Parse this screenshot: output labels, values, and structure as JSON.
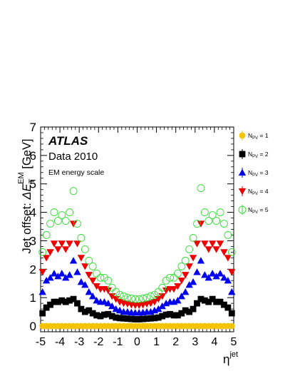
{
  "chart_data": {
    "type": "scatter",
    "title": "",
    "experiment_label": "ATLAS",
    "data_label": "Data 2010",
    "scale_label": "EM energy scale",
    "xlabel_main": "η",
    "xlabel_sup": "jet",
    "ylabel_prefix": "Jet offset:",
    "ylabel_delta": "ΔE",
    "ylabel_sub": "T",
    "ylabel_sup": "EM",
    "ylabel_unit": "[GeV]",
    "xlim": [
      -5,
      5
    ],
    "ylim": [
      -0.2,
      7
    ],
    "x_ticks": [
      -5,
      -4,
      -3,
      -2,
      -1,
      0,
      1,
      2,
      3,
      4,
      5
    ],
    "y_ticks": [
      0,
      1,
      2,
      3,
      4,
      5,
      6,
      7
    ],
    "grid": false,
    "legend_position": "right",
    "series": [
      {
        "name": "N_PV = 1",
        "legend_main": "N",
        "legend_sub": "PV",
        "legend_suffix": " = 1",
        "marker": "circle-filled",
        "color": "#f5c400",
        "x": [
          -4.9,
          -4.7,
          -4.5,
          -4.3,
          -4.1,
          -3.9,
          -3.7,
          -3.5,
          -3.3,
          -3.1,
          -2.9,
          -2.7,
          -2.5,
          -2.3,
          -2.1,
          -1.9,
          -1.7,
          -1.5,
          -1.3,
          -1.1,
          -0.9,
          -0.7,
          -0.5,
          -0.3,
          -0.1,
          0.1,
          0.3,
          0.5,
          0.7,
          0.9,
          1.1,
          1.3,
          1.5,
          1.7,
          1.9,
          2.1,
          2.3,
          2.5,
          2.7,
          2.9,
          3.1,
          3.3,
          3.5,
          3.7,
          3.9,
          4.1,
          4.3,
          4.5,
          4.7,
          4.9
        ],
        "y": [
          0.0,
          0.0,
          0.0,
          0.0,
          0.0,
          0.0,
          0.0,
          0.0,
          0.0,
          0.0,
          0.0,
          0.0,
          0.0,
          0.0,
          0.0,
          0.0,
          0.0,
          0.0,
          0.0,
          0.0,
          0.0,
          0.0,
          0.0,
          0.0,
          0.0,
          0.0,
          0.0,
          0.0,
          0.0,
          0.0,
          0.0,
          0.0,
          0.0,
          0.0,
          0.0,
          0.0,
          0.0,
          0.0,
          0.0,
          0.0,
          0.0,
          0.0,
          0.0,
          0.0,
          0.0,
          0.0,
          0.0,
          0.0,
          0.0,
          0.0
        ]
      },
      {
        "name": "N_PV = 2",
        "legend_main": "N",
        "legend_sub": "PV",
        "legend_suffix": " = 2",
        "marker": "square-filled",
        "color": "#000000",
        "x": [
          -4.9,
          -4.7,
          -4.5,
          -4.3,
          -4.1,
          -3.9,
          -3.7,
          -3.5,
          -3.3,
          -3.1,
          -2.9,
          -2.7,
          -2.5,
          -2.3,
          -2.1,
          -1.9,
          -1.7,
          -1.5,
          -1.3,
          -1.1,
          -0.9,
          -0.7,
          -0.5,
          -0.3,
          -0.1,
          0.1,
          0.3,
          0.5,
          0.7,
          0.9,
          1.1,
          1.3,
          1.5,
          1.7,
          1.9,
          2.1,
          2.3,
          2.5,
          2.7,
          2.9,
          3.1,
          3.3,
          3.5,
          3.7,
          3.9,
          4.1,
          4.3,
          4.5,
          4.7,
          4.9
        ],
        "y": [
          0.45,
          0.65,
          0.75,
          0.85,
          0.85,
          0.9,
          0.85,
          0.9,
          0.95,
          0.8,
          0.6,
          0.5,
          0.55,
          0.45,
          0.38,
          0.35,
          0.4,
          0.42,
          0.35,
          0.3,
          0.28,
          0.27,
          0.26,
          0.25,
          0.24,
          0.24,
          0.25,
          0.26,
          0.27,
          0.28,
          0.3,
          0.35,
          0.4,
          0.42,
          0.38,
          0.38,
          0.45,
          0.55,
          0.5,
          0.6,
          0.8,
          0.95,
          0.9,
          0.85,
          0.95,
          0.85,
          0.85,
          0.75,
          0.65,
          0.45
        ]
      },
      {
        "name": "N_PV = 3",
        "legend_main": "N",
        "legend_sub": "PV",
        "legend_suffix": " = 3",
        "marker": "triangle-up-filled",
        "color": "#0000ee",
        "x": [
          -4.9,
          -4.7,
          -4.5,
          -4.3,
          -4.1,
          -3.9,
          -3.7,
          -3.5,
          -3.3,
          -3.1,
          -2.9,
          -2.7,
          -2.5,
          -2.3,
          -2.1,
          -1.9,
          -1.7,
          -1.5,
          -1.3,
          -1.1,
          -0.9,
          -0.7,
          -0.5,
          -0.3,
          -0.1,
          0.1,
          0.3,
          0.5,
          0.7,
          0.9,
          1.1,
          1.3,
          1.5,
          1.7,
          1.9,
          2.1,
          2.3,
          2.5,
          2.7,
          2.9,
          3.1,
          3.3,
          3.5,
          3.7,
          3.9,
          4.1,
          4.3,
          4.5,
          4.7,
          4.9
        ],
        "y": [
          1.2,
          1.6,
          1.7,
          1.85,
          1.75,
          1.85,
          1.7,
          1.8,
          2.3,
          1.9,
          1.55,
          1.45,
          1.2,
          1.05,
          0.9,
          0.85,
          0.85,
          0.8,
          0.7,
          0.6,
          0.55,
          0.5,
          0.5,
          0.48,
          0.47,
          0.47,
          0.48,
          0.5,
          0.5,
          0.55,
          0.6,
          0.7,
          0.8,
          0.85,
          0.85,
          0.9,
          1.05,
          1.2,
          1.45,
          1.55,
          1.9,
          2.3,
          1.8,
          1.7,
          1.85,
          1.75,
          1.85,
          1.7,
          1.6,
          1.2
        ]
      },
      {
        "name": "N_PV = 4",
        "legend_main": "N",
        "legend_sub": "PV",
        "legend_suffix": " = 4",
        "marker": "triangle-down-filled",
        "color": "#ee0000",
        "x": [
          -4.9,
          -4.7,
          -4.5,
          -4.3,
          -4.1,
          -3.9,
          -3.7,
          -3.5,
          -3.3,
          -3.1,
          -2.9,
          -2.7,
          -2.5,
          -2.3,
          -2.1,
          -1.9,
          -1.7,
          -1.5,
          -1.3,
          -1.1,
          -0.9,
          -0.7,
          -0.5,
          -0.3,
          -0.1,
          0.1,
          0.3,
          0.5,
          0.7,
          0.9,
          1.1,
          1.3,
          1.5,
          1.7,
          1.9,
          2.1,
          2.3,
          2.5,
          2.7,
          2.9,
          3.1,
          3.3,
          3.5,
          3.7,
          3.9,
          4.1,
          4.3,
          4.5,
          4.7,
          4.9
        ],
        "y": [
          1.9,
          2.4,
          2.6,
          2.9,
          2.7,
          2.9,
          2.7,
          2.9,
          3.6,
          2.9,
          2.4,
          2.1,
          1.8,
          1.6,
          1.4,
          1.3,
          1.3,
          1.25,
          1.05,
          0.95,
          0.85,
          0.8,
          0.78,
          0.75,
          0.73,
          0.73,
          0.75,
          0.78,
          0.8,
          0.85,
          0.95,
          1.05,
          1.25,
          1.3,
          1.3,
          1.4,
          1.6,
          1.8,
          2.1,
          2.4,
          2.9,
          3.6,
          2.9,
          2.7,
          2.9,
          2.7,
          2.9,
          2.6,
          2.4,
          1.9
        ]
      },
      {
        "name": "N_PV = 5",
        "legend_main": "N",
        "legend_sub": "PV",
        "legend_suffix": " = 5",
        "marker": "circle-open",
        "color": "#33dd33",
        "x": [
          -4.9,
          -4.7,
          -4.5,
          -4.3,
          -4.1,
          -3.9,
          -3.7,
          -3.5,
          -3.3,
          -3.1,
          -2.9,
          -2.7,
          -2.5,
          -2.3,
          -2.1,
          -1.9,
          -1.7,
          -1.5,
          -1.3,
          -1.1,
          -0.9,
          -0.7,
          -0.5,
          -0.3,
          -0.1,
          0.1,
          0.3,
          0.5,
          0.7,
          0.9,
          1.1,
          1.3,
          1.5,
          1.7,
          1.9,
          2.1,
          2.3,
          2.5,
          2.7,
          2.9,
          3.1,
          3.3,
          3.5,
          3.7,
          3.9,
          4.1,
          4.3,
          4.5,
          4.7,
          4.9
        ],
        "y": [
          2.6,
          3.2,
          3.6,
          4.0,
          3.7,
          3.9,
          3.7,
          4.0,
          4.75,
          3.6,
          3.1,
          2.7,
          2.3,
          2.1,
          1.85,
          1.7,
          1.7,
          1.6,
          1.35,
          1.2,
          1.1,
          1.05,
          1.0,
          0.97,
          0.95,
          0.95,
          0.97,
          1.0,
          1.05,
          1.1,
          1.2,
          1.35,
          1.6,
          1.7,
          1.7,
          1.85,
          2.1,
          2.3,
          2.7,
          3.1,
          3.6,
          4.85,
          4.0,
          3.7,
          3.9,
          3.7,
          4.0,
          3.6,
          3.2,
          2.6
        ]
      }
    ]
  }
}
